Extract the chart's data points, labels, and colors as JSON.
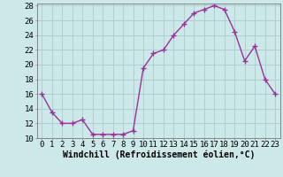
{
  "x": [
    0,
    1,
    2,
    3,
    4,
    5,
    6,
    7,
    8,
    9,
    10,
    11,
    12,
    13,
    14,
    15,
    16,
    17,
    18,
    19,
    20,
    21,
    22,
    23
  ],
  "y": [
    16,
    13.5,
    12,
    12,
    12.5,
    10.5,
    10.5,
    10.5,
    10.5,
    11,
    19.5,
    21.5,
    22,
    24,
    25.5,
    27,
    27.5,
    28,
    27.5,
    24.5,
    20.5,
    22.5,
    18,
    16
  ],
  "line_color": "#993399",
  "marker": "+",
  "marker_size": 4,
  "bg_color": "#cce8e8",
  "grid_color": "#aacccc",
  "xlabel": "Windchill (Refroidissement éolien,°C)",
  "ylim": [
    10,
    28
  ],
  "xlim": [
    -0.5,
    23.5
  ],
  "yticks": [
    10,
    12,
    14,
    16,
    18,
    20,
    22,
    24,
    26,
    28
  ],
  "xticks": [
    0,
    1,
    2,
    3,
    4,
    5,
    6,
    7,
    8,
    9,
    10,
    11,
    12,
    13,
    14,
    15,
    16,
    17,
    18,
    19,
    20,
    21,
    22,
    23
  ],
  "xlabel_fontsize": 7,
  "tick_fontsize": 6.5,
  "line_width": 1.0,
  "marker_edge_width": 1.0
}
